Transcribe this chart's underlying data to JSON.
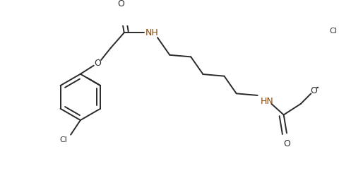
{
  "background_color": "#ffffff",
  "line_color": "#2a2a2a",
  "line_width": 1.4,
  "figsize": [
    4.97,
    2.66
  ],
  "dpi": 100,
  "xlim": [
    0,
    497
  ],
  "ylim": [
    0,
    266
  ],
  "nh_color": "#8B4500"
}
